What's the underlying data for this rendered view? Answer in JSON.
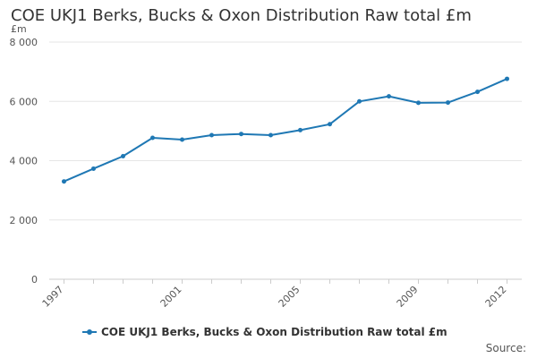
{
  "chart_data": {
    "type": "line",
    "title": "COE UKJ1 Berks, Bucks & Oxon Distribution Raw total £m",
    "ylabel": "£m",
    "xlabel": "",
    "x": [
      1997,
      1998,
      1999,
      2000,
      2001,
      2002,
      2003,
      2004,
      2005,
      2006,
      2007,
      2008,
      2009,
      2010,
      2011,
      2012
    ],
    "x_tick_labels": [
      "1997",
      "2001",
      "2005",
      "2009",
      "2012"
    ],
    "x_ticks": [
      1997,
      2001,
      2005,
      2009,
      2012
    ],
    "y_ticks": [
      0,
      2000,
      4000,
      6000,
      8000
    ],
    "y_tick_labels": [
      "0",
      "2 000",
      "4 000",
      "6 000",
      "8 000"
    ],
    "ylim": [
      0,
      8000
    ],
    "xlim": [
      1996.5,
      2012.5
    ],
    "grid": true,
    "legend_position": "bottom",
    "series": [
      {
        "name": "COE UKJ1 Berks, Bucks & Oxon Distribution Raw total £m",
        "color": "#1f78b4",
        "values": [
          3300,
          3730,
          4150,
          4770,
          4710,
          4860,
          4900,
          4860,
          5030,
          5230,
          6000,
          6170,
          5950,
          5960,
          6320,
          6760
        ]
      }
    ]
  },
  "footer": {
    "source_label": "Source:"
  }
}
